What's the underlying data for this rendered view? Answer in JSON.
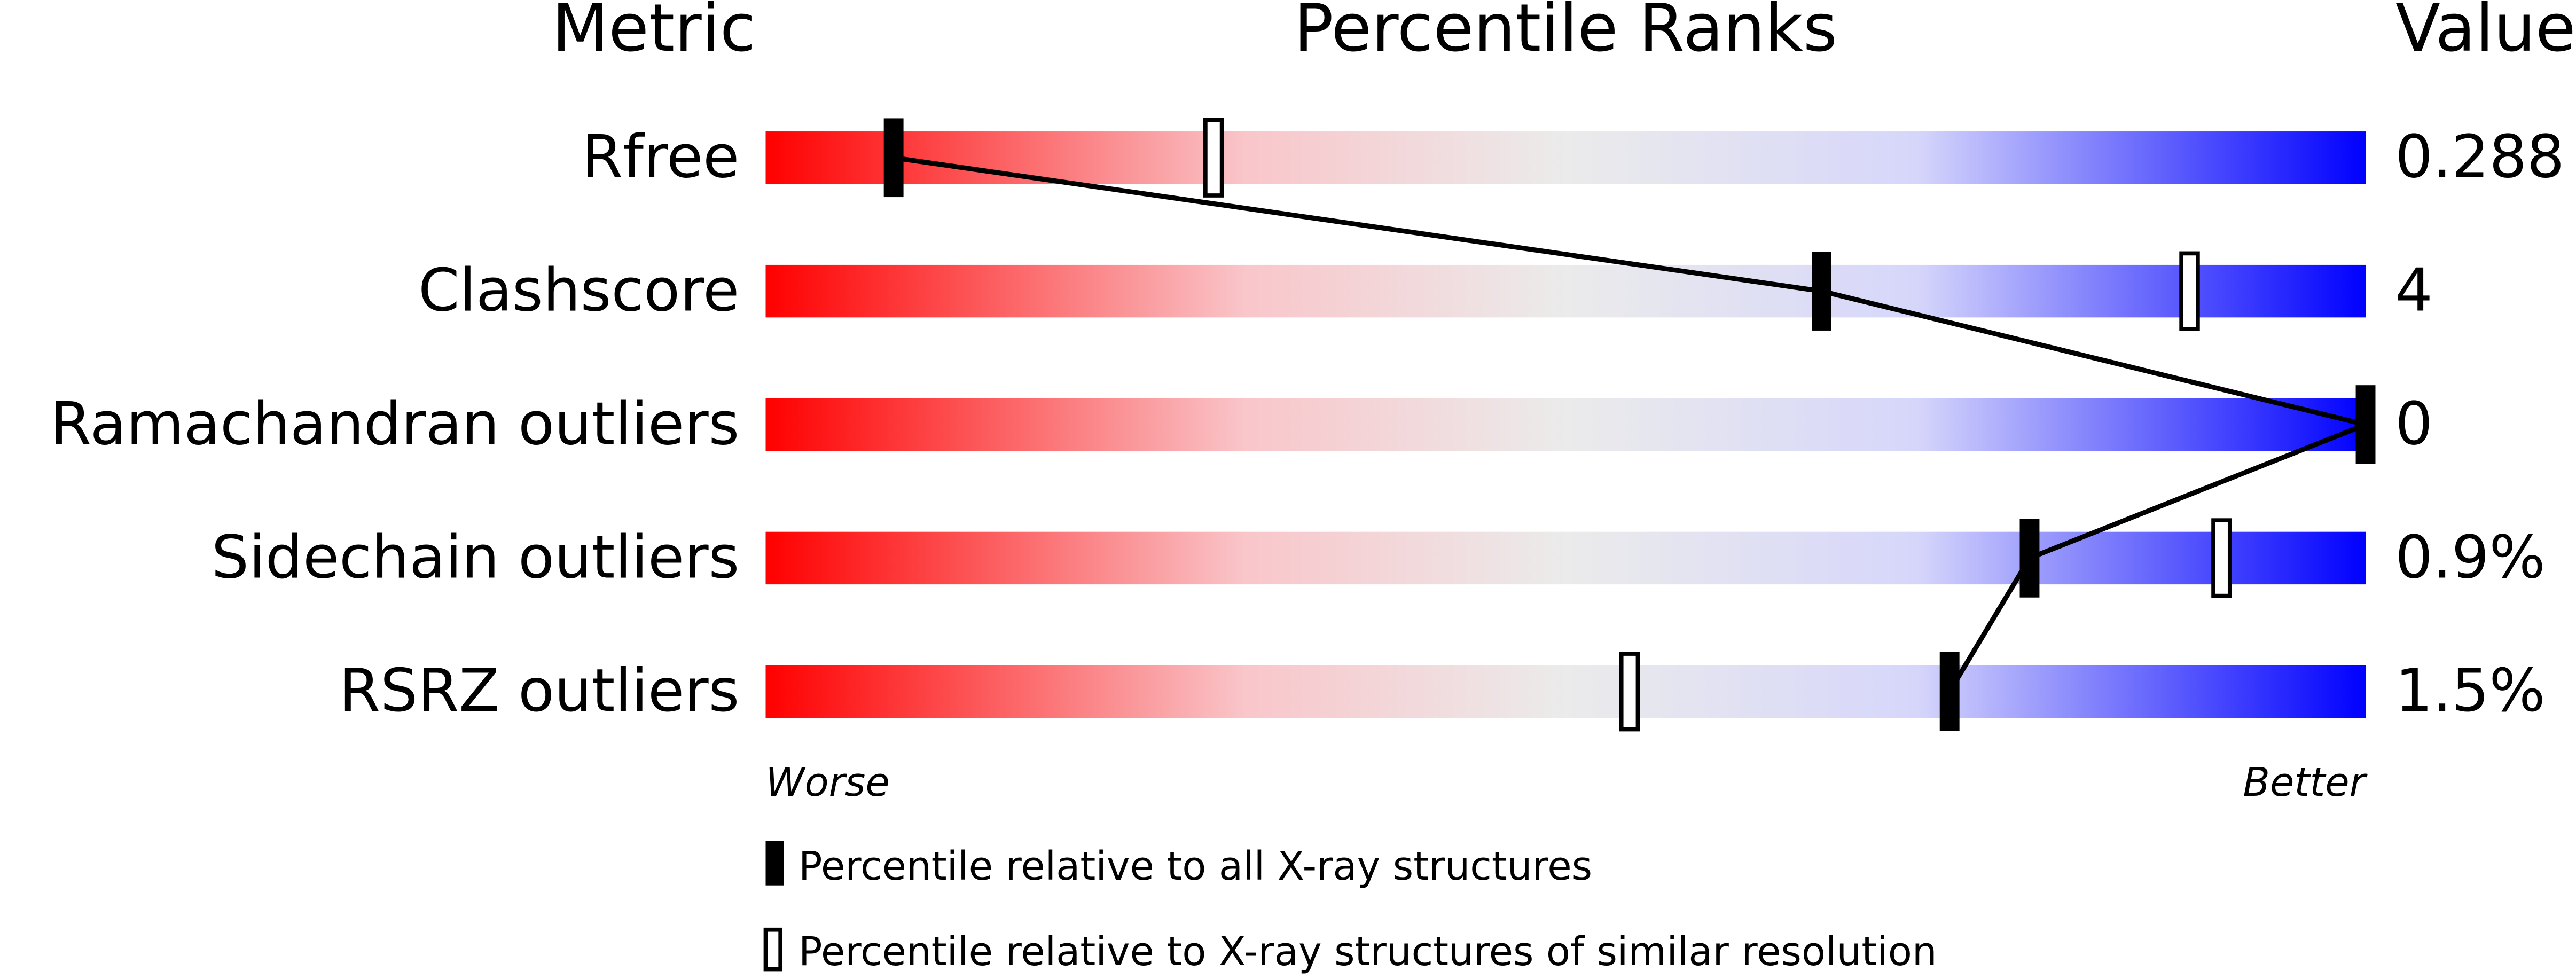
{
  "chart_data": {
    "type": "percentile-slider",
    "title": "Percentile Ranks",
    "metric_header": "Metric",
    "value_header": "Value",
    "worse_label": "Worse",
    "better_label": "Better",
    "categories": [
      "Rfree",
      "Clashscore",
      "Ramachandran outliers",
      "Sidechain outliers",
      "RSRZ outliers"
    ],
    "printed_values": [
      "0.288",
      "4",
      "0",
      "0.9%",
      "1.5%"
    ],
    "xlim": [
      0,
      100
    ],
    "series": [
      {
        "name": "Percentile relative to all X-ray structures",
        "color": "#000000",
        "values": [
          8,
          66,
          100,
          79,
          74
        ]
      },
      {
        "name": "Percentile relative to X-ray structures of similar resolution",
        "color": "#ffffff",
        "values": [
          28,
          89,
          null,
          91,
          54
        ]
      }
    ]
  }
}
